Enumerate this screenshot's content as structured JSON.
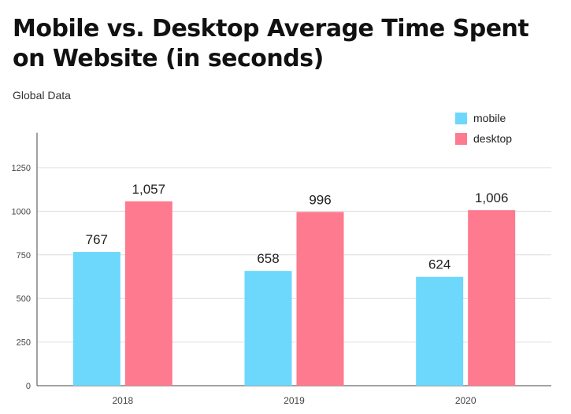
{
  "title": "Mobile vs. Desktop Average Time Spent on Website (in seconds)",
  "subtitle": "Global Data",
  "chart_data": {
    "type": "bar",
    "title": "Mobile vs. Desktop Average Time Spent on Website (in seconds)",
    "subtitle": "Global Data",
    "xlabel": "",
    "ylabel": "",
    "categories": [
      "2018",
      "2019",
      "2020"
    ],
    "series": [
      {
        "name": "mobile",
        "color": "#6dd8fb",
        "values": [
          767,
          658,
          624
        ],
        "labels": [
          "767",
          "658",
          "624"
        ]
      },
      {
        "name": "desktop",
        "color": "#fe7a8f",
        "values": [
          1057,
          996,
          1006
        ],
        "labels": [
          "1,057",
          "996",
          "1,006"
        ]
      }
    ],
    "ylim": [
      0,
      1450
    ],
    "yticks": [
      0,
      250,
      500,
      750,
      1000,
      1250
    ],
    "yticklabels": [
      "0",
      "250",
      "500",
      "750",
      "1000",
      "1250"
    ],
    "grid": true,
    "legend": "top-right"
  }
}
